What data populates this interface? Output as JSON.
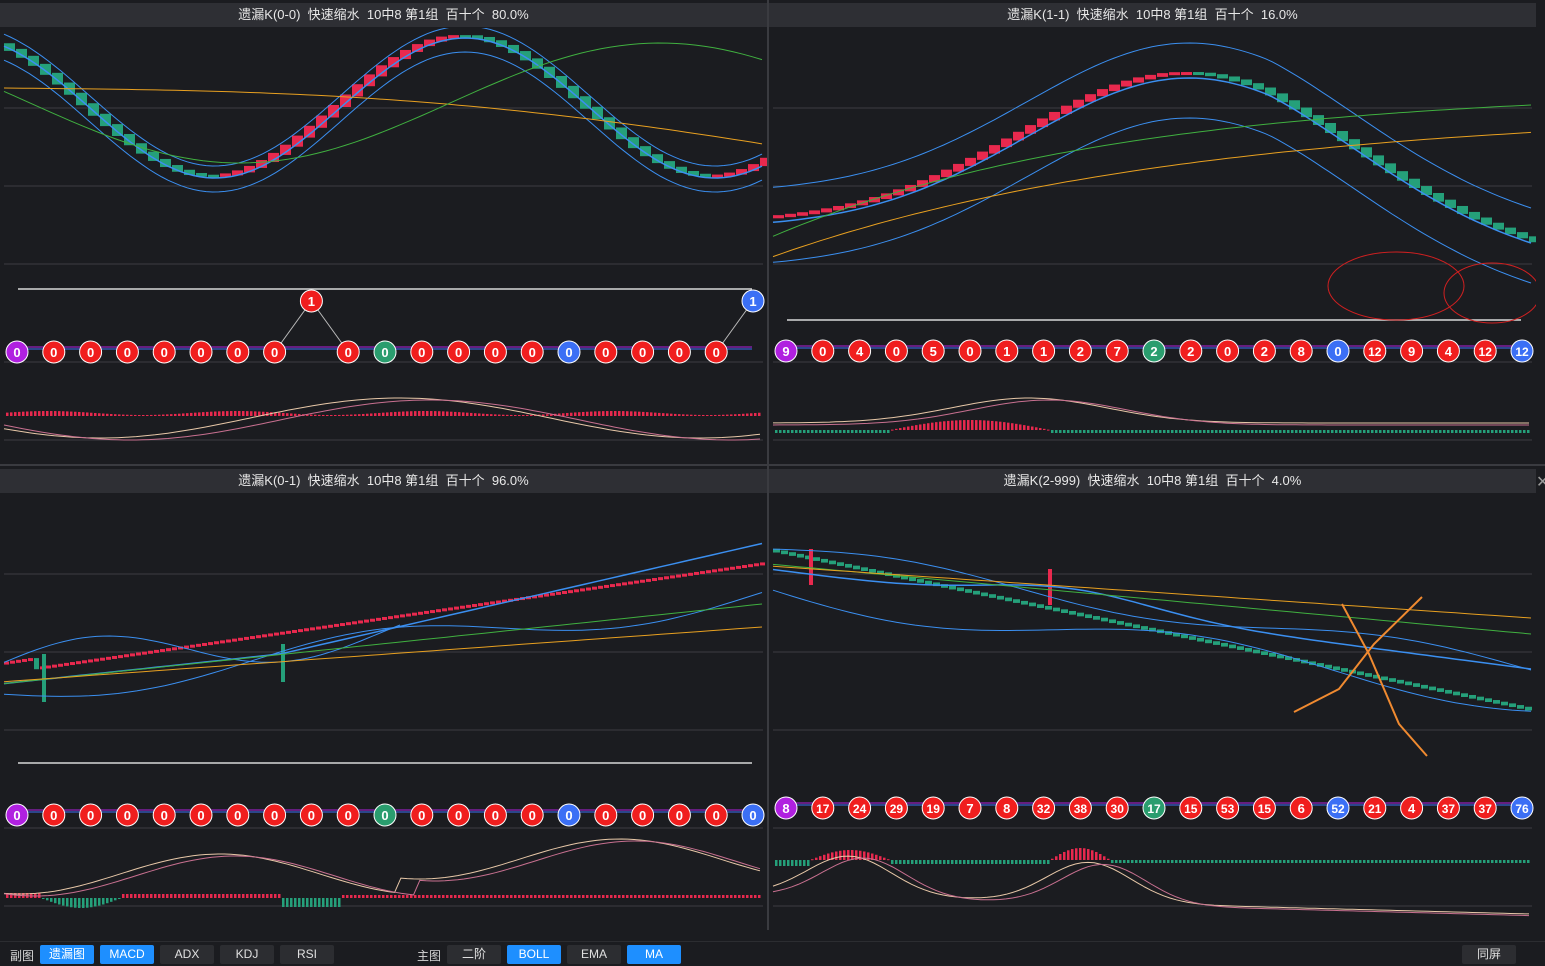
{
  "panels": [
    {
      "id": "p00",
      "title": "遗漏K(0-0)  快速缩水  10中8 第1组  百十个  80.0%",
      "badges": [
        {
          "v": "0",
          "c": "purple"
        },
        {
          "v": "0",
          "c": "red"
        },
        {
          "v": "0",
          "c": "red"
        },
        {
          "v": "0",
          "c": "red"
        },
        {
          "v": "0",
          "c": "red"
        },
        {
          "v": "0",
          "c": "red"
        },
        {
          "v": "0",
          "c": "red"
        },
        {
          "v": "0",
          "c": "red"
        },
        {
          "v": "1",
          "c": "red",
          "up": true
        },
        {
          "v": "0",
          "c": "red"
        },
        {
          "v": "0",
          "c": "green"
        },
        {
          "v": "0",
          "c": "red"
        },
        {
          "v": "0",
          "c": "red"
        },
        {
          "v": "0",
          "c": "red"
        },
        {
          "v": "0",
          "c": "red"
        },
        {
          "v": "0",
          "c": "blue"
        },
        {
          "v": "0",
          "c": "red"
        },
        {
          "v": "0",
          "c": "red"
        },
        {
          "v": "0",
          "c": "red"
        },
        {
          "v": "0",
          "c": "red"
        },
        {
          "v": "1",
          "c": "blue",
          "up": true
        }
      ]
    },
    {
      "id": "p11",
      "title": "遗漏K(1-1)  快速缩水  10中8 第1组  百十个  16.0%",
      "badges": [
        {
          "v": "9",
          "c": "purple"
        },
        {
          "v": "0",
          "c": "red"
        },
        {
          "v": "4",
          "c": "red"
        },
        {
          "v": "0",
          "c": "red"
        },
        {
          "v": "5",
          "c": "red"
        },
        {
          "v": "0",
          "c": "red"
        },
        {
          "v": "1",
          "c": "red"
        },
        {
          "v": "1",
          "c": "red"
        },
        {
          "v": "2",
          "c": "red"
        },
        {
          "v": "7",
          "c": "red"
        },
        {
          "v": "2",
          "c": "green"
        },
        {
          "v": "2",
          "c": "red"
        },
        {
          "v": "0",
          "c": "red"
        },
        {
          "v": "2",
          "c": "red"
        },
        {
          "v": "8",
          "c": "red"
        },
        {
          "v": "0",
          "c": "blue"
        },
        {
          "v": "12",
          "c": "red"
        },
        {
          "v": "9",
          "c": "red"
        },
        {
          "v": "4",
          "c": "red"
        },
        {
          "v": "12",
          "c": "red"
        },
        {
          "v": "12",
          "c": "blue"
        }
      ]
    },
    {
      "id": "p01",
      "title": "遗漏K(0-1)  快速缩水  10中8 第1组  百十个  96.0%",
      "badges": [
        {
          "v": "0",
          "c": "purple"
        },
        {
          "v": "0",
          "c": "red"
        },
        {
          "v": "0",
          "c": "red"
        },
        {
          "v": "0",
          "c": "red"
        },
        {
          "v": "0",
          "c": "red"
        },
        {
          "v": "0",
          "c": "red"
        },
        {
          "v": "0",
          "c": "red"
        },
        {
          "v": "0",
          "c": "red"
        },
        {
          "v": "0",
          "c": "red"
        },
        {
          "v": "0",
          "c": "red"
        },
        {
          "v": "0",
          "c": "green"
        },
        {
          "v": "0",
          "c": "red"
        },
        {
          "v": "0",
          "c": "red"
        },
        {
          "v": "0",
          "c": "red"
        },
        {
          "v": "0",
          "c": "red"
        },
        {
          "v": "0",
          "c": "blue"
        },
        {
          "v": "0",
          "c": "red"
        },
        {
          "v": "0",
          "c": "red"
        },
        {
          "v": "0",
          "c": "red"
        },
        {
          "v": "0",
          "c": "red"
        },
        {
          "v": "0",
          "c": "blue"
        }
      ]
    },
    {
      "id": "p2999",
      "title": "遗漏K(2-999)  快速缩水  10中8 第1组  百十个  4.0%",
      "badges": [
        {
          "v": "8",
          "c": "purple"
        },
        {
          "v": "17",
          "c": "red"
        },
        {
          "v": "24",
          "c": "red"
        },
        {
          "v": "29",
          "c": "red"
        },
        {
          "v": "19",
          "c": "red"
        },
        {
          "v": "7",
          "c": "red"
        },
        {
          "v": "8",
          "c": "red"
        },
        {
          "v": "32",
          "c": "red"
        },
        {
          "v": "38",
          "c": "red"
        },
        {
          "v": "30",
          "c": "red"
        },
        {
          "v": "17",
          "c": "green"
        },
        {
          "v": "15",
          "c": "red"
        },
        {
          "v": "53",
          "c": "red"
        },
        {
          "v": "15",
          "c": "red"
        },
        {
          "v": "6",
          "c": "red"
        },
        {
          "v": "52",
          "c": "blue"
        },
        {
          "v": "21",
          "c": "red"
        },
        {
          "v": "4",
          "c": "red"
        },
        {
          "v": "37",
          "c": "red"
        },
        {
          "v": "37",
          "c": "red"
        },
        {
          "v": "76",
          "c": "blue"
        }
      ]
    }
  ],
  "toolbar": {
    "sub_label": "副图",
    "sub_buttons": [
      {
        "label": "遗漏图",
        "active": true
      },
      {
        "label": "MACD",
        "active": true
      },
      {
        "label": "ADX",
        "active": false
      },
      {
        "label": "KDJ",
        "active": false
      },
      {
        "label": "RSI",
        "active": false
      }
    ],
    "main_label": "主图",
    "main_buttons": [
      {
        "label": "二阶",
        "active": false
      },
      {
        "label": "BOLL",
        "active": true
      },
      {
        "label": "EMA",
        "active": false
      },
      {
        "label": "MA",
        "active": true
      }
    ],
    "right_button": "同屏"
  },
  "colors": {
    "red": "#f01e1e",
    "green": "#2a9d6e",
    "blue": "#3b6ff5",
    "purple": "#b020e0",
    "candle_up": "#e8294e",
    "candle_down": "#25a07a"
  }
}
